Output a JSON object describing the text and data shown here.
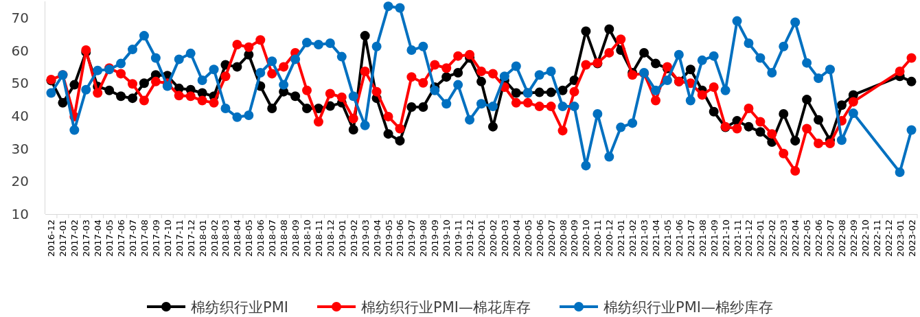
{
  "chart_data": {
    "type": "line",
    "categories": [
      "2016-12",
      "2017-01",
      "2017-02",
      "2017-03",
      "2017-04",
      "2017-05",
      "2017-06",
      "2017-07",
      "2017-08",
      "2017-09",
      "2017-10",
      "2017-11",
      "2017-12",
      "2018-01",
      "2018-02",
      "2018-03",
      "2018-04",
      "2018-05",
      "2018-06",
      "2018-07",
      "2018-08",
      "2018-09",
      "2018-10",
      "2018-11",
      "2018-12",
      "2019-01",
      "2019-02",
      "2019-03",
      "2019-04",
      "2019-05",
      "2019-06",
      "2019-07",
      "2019-08",
      "2019-09",
      "2019-10",
      "2019-11",
      "2019-12",
      "2020-01",
      "2020-02",
      "2020-03",
      "2020-04",
      "2020-05",
      "2020-06",
      "2020-07",
      "2020-08",
      "2020-09",
      "2020-10",
      "2020-11",
      "2020-12",
      "2021-01",
      "2021-02",
      "2021-03",
      "2021-04",
      "2021-05",
      "2021-06",
      "2021-07",
      "2021-08",
      "2021-09",
      "2021-10",
      "2021-11",
      "2021-12",
      "2022-01",
      "2022-02",
      "2022-03",
      "2022-04",
      "2022-05",
      "2022-06",
      "2022-07",
      "2022-08",
      "2022-09",
      "2022-10",
      "2022-11",
      "2022-12",
      "2023-01",
      "2023-02"
    ],
    "series": [
      {
        "name": "棉纺织行业PMI",
        "color": "#000000",
        "values": [
          50.8,
          44,
          49.5,
          59.5,
          49,
          47.8,
          46,
          45.4,
          50,
          52.5,
          52.3,
          48.4,
          48,
          47,
          46,
          55.6,
          55,
          58.7,
          49.1,
          42.3,
          47.4,
          46,
          42.3,
          42.3,
          43,
          44,
          35.8,
          64.5,
          45.4,
          34.5,
          32.4,
          42.7,
          42.7,
          48.8,
          51.9,
          53.2,
          57.7,
          50.5,
          36.7,
          50.9,
          47,
          47,
          47.2,
          47.2,
          47.8,
          50.9,
          65.9,
          56,
          66.5,
          60.1,
          53.2,
          59.3,
          56,
          54.5,
          50.5,
          54.2,
          47.8,
          41.3,
          36.5,
          38.5,
          36.7,
          35.1,
          32,
          40.6,
          32.4,
          45,
          38.8,
          32.6,
          43.3,
          46.4,
          null,
          null,
          null,
          52.1,
          50.5
        ]
      },
      {
        "name": "棉纺织行业PMI—棉花库存",
        "color": "#ff0000",
        "values": [
          51.1,
          52.5,
          39.8,
          60.1,
          47,
          54.6,
          52.9,
          49.8,
          44.7,
          50.5,
          50,
          46.2,
          46,
          44.7,
          44,
          52.1,
          61.8,
          61,
          63.2,
          52.9,
          55,
          59.3,
          47.8,
          38.2,
          46.8,
          45.7,
          39.2,
          53.6,
          47.4,
          39.8,
          36.1,
          51.9,
          50.1,
          55.6,
          54.6,
          58.3,
          58.7,
          53.6,
          52.9,
          48.8,
          44,
          44,
          42.9,
          42.9,
          35.5,
          47.4,
          55.6,
          56.2,
          59.3,
          63.4,
          52.5,
          53,
          44.7,
          55,
          50.5,
          50,
          46.4,
          48.8,
          36.7,
          36.1,
          42.3,
          38.2,
          34.5,
          28.5,
          23.2,
          36.1,
          31.6,
          31.6,
          38.5,
          44.3,
          null,
          null,
          null,
          53.6,
          57.7
        ]
      },
      {
        "name": "棉纺织行业PMI—棉纱库存",
        "color": "#0070c0",
        "values": [
          47,
          52.5,
          35.7,
          48,
          53.9,
          54.2,
          56,
          60.3,
          64.5,
          57.7,
          49.1,
          57.3,
          59.1,
          50.9,
          54.2,
          42.3,
          39.6,
          40.2,
          53.2,
          56.7,
          49.5,
          57.3,
          62.4,
          61.8,
          62.2,
          58.1,
          46,
          37.1,
          61.2,
          73.5,
          73,
          60.1,
          61.2,
          47.8,
          43.7,
          49.5,
          38.8,
          43.7,
          42.9,
          52.1,
          55.2,
          47,
          52.5,
          53.6,
          42.9,
          42.9,
          24.8,
          40.6,
          27.5,
          36.5,
          37.8,
          53.2,
          47.8,
          50.9,
          58.7,
          44.7,
          57,
          58.3,
          47.8,
          69,
          62.2,
          57.7,
          53.2,
          61.2,
          68.6,
          56.2,
          51.5,
          54.2,
          32.6,
          40.8,
          null,
          null,
          null,
          22.8,
          35.7
        ]
      }
    ],
    "ylim": [
      10,
      75
    ],
    "yticks": [
      10,
      20,
      30,
      40,
      50,
      60,
      70
    ],
    "marker": "circle",
    "line_style": "solid",
    "legend": "bottom"
  }
}
